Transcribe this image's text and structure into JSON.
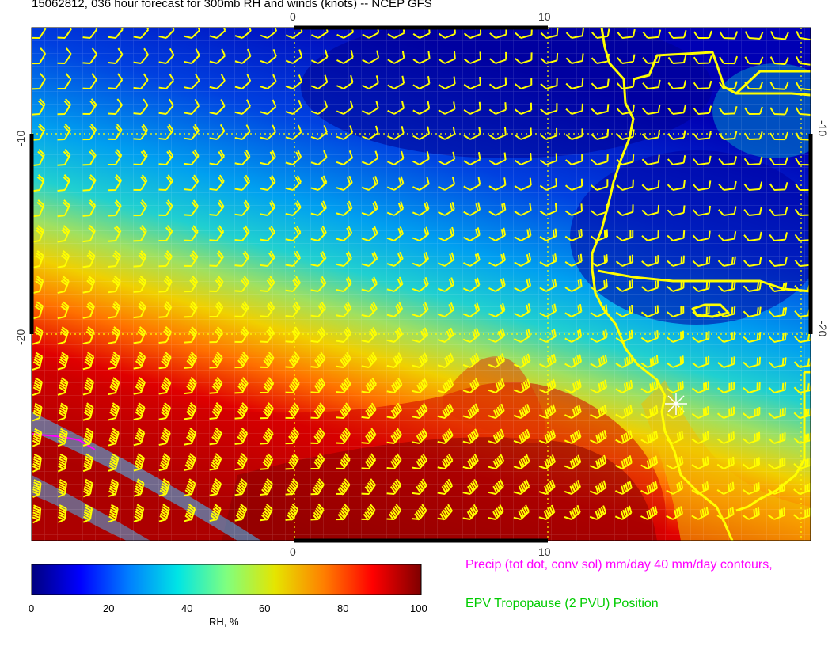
{
  "title": "15062812, 036 hour forecast for 300mb RH and winds (knots) -- NCEP GFS",
  "axes": {
    "top_ticks": [
      "0",
      "10"
    ],
    "bottom_ticks": [
      "0",
      "10"
    ],
    "left_ticks": [
      "-10",
      "-20"
    ],
    "right_ticks": [
      "-10",
      "-20"
    ]
  },
  "colorbar": {
    "label": "RH, %",
    "ticks": [
      "0",
      "20",
      "40",
      "60",
      "80",
      "100"
    ],
    "colors": [
      "#00007f",
      "#0000ff",
      "#007fff",
      "#00e5e5",
      "#7fff7f",
      "#e5e500",
      "#ff7f00",
      "#ff0000",
      "#7f0000"
    ]
  },
  "legend": {
    "precip": "Precip (tot dot, conv sol) mm/day 40 mm/day contours,",
    "precip_color": "#ff00ff",
    "epv": "EPV Tropopause (2 PVU) Position",
    "epv_color": "#00cc00"
  },
  "wind_barb_color": "#ffff00",
  "coastline_color": "#ffff00"
}
